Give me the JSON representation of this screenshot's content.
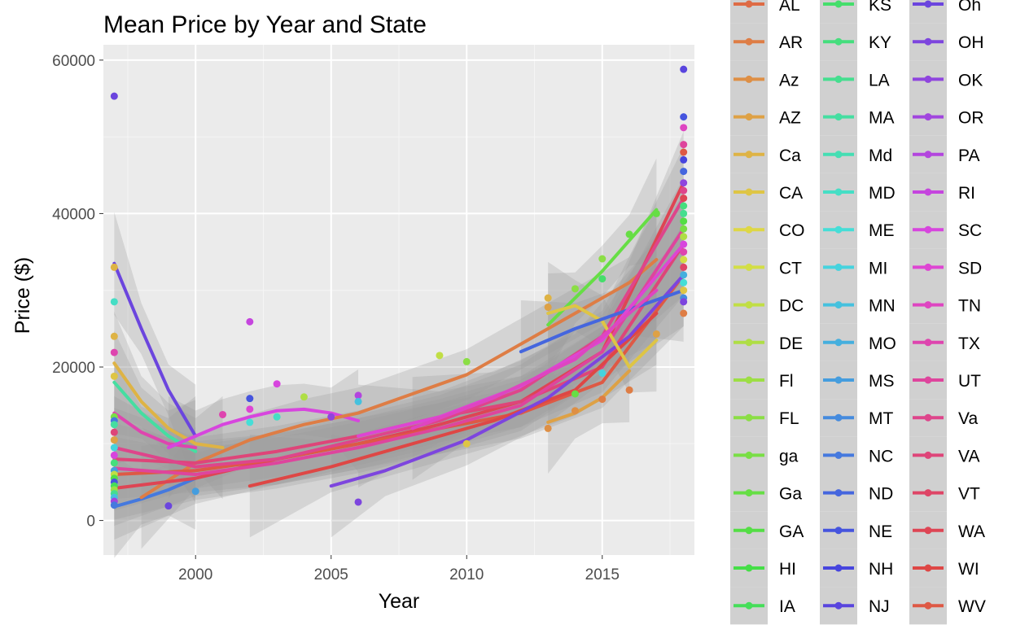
{
  "chart_data": {
    "type": "scatter",
    "title": "Mean Price by Year and State",
    "xlabel": "Year",
    "ylabel": "Price ($)",
    "xlim": [
      1996.6,
      2018.4
    ],
    "ylim": [
      -4500,
      62000
    ],
    "x_ticks": [
      2000,
      2005,
      2010,
      2015
    ],
    "y_ticks": [
      0,
      20000,
      40000,
      60000
    ],
    "grid": true,
    "legend_position": "right",
    "smooth": "loess with gray confidence bands",
    "legend_entries": [
      "AL",
      "AR",
      "Az",
      "AZ",
      "Ca",
      "CA",
      "CO",
      "CT",
      "DC",
      "DE",
      "Fl",
      "FL",
      "ga",
      "Ga",
      "GA",
      "HI",
      "IA",
      "KS",
      "KY",
      "LA",
      "MA",
      "Md",
      "MD",
      "ME",
      "MI",
      "MN",
      "MO",
      "MS",
      "MT",
      "NC",
      "ND",
      "NE",
      "NH",
      "NJ",
      "Oh",
      "OH",
      "OK",
      "OR",
      "PA",
      "RI",
      "SC",
      "SD",
      "TN",
      "TX",
      "UT",
      "Va",
      "VA",
      "VT",
      "WA",
      "WI",
      "WV"
    ],
    "points": [
      {
        "x": 1997,
        "y": 55300,
        "s": 34
      },
      {
        "x": 1997,
        "y": 33000,
        "s": 4
      },
      {
        "x": 1997,
        "y": 28500,
        "s": 22
      },
      {
        "x": 1997,
        "y": 24000,
        "s": 4
      },
      {
        "x": 1997,
        "y": 21900,
        "s": 43
      },
      {
        "x": 1997,
        "y": 18800,
        "s": 5
      },
      {
        "x": 1997,
        "y": 13500,
        "s": 12
      },
      {
        "x": 1997,
        "y": 13000,
        "s": 29
      },
      {
        "x": 1997,
        "y": 12500,
        "s": 20
      },
      {
        "x": 1997,
        "y": 11500,
        "s": 46
      },
      {
        "x": 1997,
        "y": 10500,
        "s": 3
      },
      {
        "x": 1997,
        "y": 9500,
        "s": 24
      },
      {
        "x": 1997,
        "y": 8500,
        "s": 40
      },
      {
        "x": 1997,
        "y": 7500,
        "s": 18
      },
      {
        "x": 1997,
        "y": 6500,
        "s": 27
      },
      {
        "x": 1997,
        "y": 6000,
        "s": 8
      },
      {
        "x": 1997,
        "y": 5500,
        "s": 14
      },
      {
        "x": 1997,
        "y": 5000,
        "s": 31
      },
      {
        "x": 1997,
        "y": 4500,
        "s": 16
      },
      {
        "x": 1997,
        "y": 4000,
        "s": 10
      },
      {
        "x": 1997,
        "y": 3500,
        "s": 19
      },
      {
        "x": 1997,
        "y": 3000,
        "s": 25
      },
      {
        "x": 1997,
        "y": 2500,
        "s": 37
      },
      {
        "x": 1997,
        "y": 2000,
        "s": 29
      },
      {
        "x": 1999,
        "y": 1900,
        "s": 34
      },
      {
        "x": 2000,
        "y": 3800,
        "s": 27
      },
      {
        "x": 2001,
        "y": 13800,
        "s": 43
      },
      {
        "x": 2002,
        "y": 25900,
        "s": 39
      },
      {
        "x": 2002,
        "y": 15900,
        "s": 31
      },
      {
        "x": 2002,
        "y": 14500,
        "s": 41
      },
      {
        "x": 2002,
        "y": 12800,
        "s": 23
      },
      {
        "x": 2003,
        "y": 17800,
        "s": 40
      },
      {
        "x": 2003,
        "y": 13500,
        "s": 22
      },
      {
        "x": 2004,
        "y": 16100,
        "s": 9
      },
      {
        "x": 2005,
        "y": 13500,
        "s": 36
      },
      {
        "x": 2006,
        "y": 16300,
        "s": 38
      },
      {
        "x": 2006,
        "y": 15500,
        "s": 25
      },
      {
        "x": 2006,
        "y": 2400,
        "s": 35
      },
      {
        "x": 2009,
        "y": 21500,
        "s": 8
      },
      {
        "x": 2010,
        "y": 20700,
        "s": 11
      },
      {
        "x": 2010,
        "y": 10000,
        "s": 5
      },
      {
        "x": 2013,
        "y": 29000,
        "s": 4
      },
      {
        "x": 2013,
        "y": 27800,
        "s": 3
      },
      {
        "x": 2013,
        "y": 12000,
        "s": 2
      },
      {
        "x": 2014,
        "y": 30200,
        "s": 11
      },
      {
        "x": 2014,
        "y": 14300,
        "s": 2
      },
      {
        "x": 2014,
        "y": 16500,
        "s": 13
      },
      {
        "x": 2015,
        "y": 34100,
        "s": 11
      },
      {
        "x": 2015,
        "y": 31500,
        "s": 17
      },
      {
        "x": 2015,
        "y": 19200,
        "s": 24
      },
      {
        "x": 2015,
        "y": 15800,
        "s": 1
      },
      {
        "x": 2016,
        "y": 37300,
        "s": 13
      },
      {
        "x": 2016,
        "y": 17000,
        "s": 1
      },
      {
        "x": 2017,
        "y": 40000,
        "s": 13
      },
      {
        "x": 2017,
        "y": 24300,
        "s": 3
      },
      {
        "x": 2018,
        "y": 58800,
        "s": 33
      },
      {
        "x": 2018,
        "y": 52600,
        "s": 31
      },
      {
        "x": 2018,
        "y": 51200,
        "s": 42
      },
      {
        "x": 2018,
        "y": 49000,
        "s": 44
      },
      {
        "x": 2018,
        "y": 48000,
        "s": 50
      },
      {
        "x": 2018,
        "y": 47000,
        "s": 32
      },
      {
        "x": 2018,
        "y": 45500,
        "s": 30
      },
      {
        "x": 2018,
        "y": 44000,
        "s": 36
      },
      {
        "x": 2018,
        "y": 43000,
        "s": 45
      },
      {
        "x": 2018,
        "y": 42000,
        "s": 48
      },
      {
        "x": 2018,
        "y": 41000,
        "s": 18
      },
      {
        "x": 2018,
        "y": 40000,
        "s": 19
      },
      {
        "x": 2018,
        "y": 39000,
        "s": 14
      },
      {
        "x": 2018,
        "y": 38000,
        "s": 12
      },
      {
        "x": 2018,
        "y": 37000,
        "s": 9
      },
      {
        "x": 2018,
        "y": 36000,
        "s": 40
      },
      {
        "x": 2018,
        "y": 35000,
        "s": 43
      },
      {
        "x": 2018,
        "y": 34000,
        "s": 7
      },
      {
        "x": 2018,
        "y": 33000,
        "s": 47
      },
      {
        "x": 2018,
        "y": 32000,
        "s": 26
      },
      {
        "x": 2018,
        "y": 31000,
        "s": 23
      },
      {
        "x": 2018,
        "y": 30000,
        "s": 5
      },
      {
        "x": 2018,
        "y": 29000,
        "s": 28
      },
      {
        "x": 2018,
        "y": 28500,
        "s": 35
      },
      {
        "x": 2018,
        "y": 27000,
        "s": 1
      }
    ],
    "series": [
      {
        "s": 34,
        "x": [
          1997,
          1998,
          1999,
          2000
        ],
        "y": [
          33500,
          25000,
          17000,
          11000
        ]
      },
      {
        "s": 4,
        "x": [
          1997,
          1998,
          1999,
          2000,
          2001
        ],
        "y": [
          20500,
          15500,
          12000,
          10000,
          9500
        ]
      },
      {
        "s": 20,
        "x": [
          1997,
          1998,
          1999,
          2000
        ],
        "y": [
          18000,
          14000,
          11000,
          9000
        ]
      },
      {
        "s": 43,
        "x": [
          1997,
          1998,
          1999,
          2000
        ],
        "y": [
          14000,
          11500,
          10000,
          9500
        ]
      },
      {
        "s": 40,
        "x": [
          1999,
          2000,
          2001,
          2002,
          2003,
          2004,
          2005,
          2006
        ],
        "y": [
          9500,
          11000,
          12500,
          13500,
          14300,
          14500,
          14000,
          13000
        ]
      },
      {
        "s": 29,
        "x": [
          1997,
          1998,
          1999,
          2000
        ],
        "y": [
          1800,
          2800,
          4000,
          5500
        ]
      },
      {
        "s": 1,
        "x": [
          1998,
          2000,
          2002,
          2004,
          2006,
          2008,
          2010,
          2012,
          2014,
          2016,
          2017
        ],
        "y": [
          3000,
          7500,
          10500,
          12500,
          14000,
          16500,
          19000,
          23000,
          27000,
          31000,
          34000
        ]
      },
      {
        "s": 48,
        "x": [
          1997,
          2000,
          2003,
          2006,
          2009,
          2012,
          2015,
          2018
        ],
        "y": [
          4200,
          5500,
          8000,
          10000,
          12500,
          15500,
          22000,
          44000
        ]
      },
      {
        "s": 50,
        "x": [
          1997,
          2000,
          2003,
          2006,
          2009,
          2012,
          2015,
          2018
        ],
        "y": [
          6000,
          6500,
          8000,
          10000,
          12000,
          14000,
          18000,
          32000
        ]
      },
      {
        "s": 46,
        "x": [
          1997,
          2000,
          2003,
          2006,
          2009,
          2012,
          2015,
          2018
        ],
        "y": [
          8000,
          7500,
          9000,
          11000,
          13500,
          15500,
          20000,
          36000
        ]
      },
      {
        "s": 45,
        "x": [
          1997,
          2000,
          2003,
          2006,
          2009,
          2012,
          2015,
          2018
        ],
        "y": [
          9500,
          7000,
          8000,
          10500,
          13000,
          17000,
          24000,
          42000
        ]
      },
      {
        "s": 44,
        "x": [
          1997,
          2000,
          2003,
          2006,
          2009,
          2012,
          2015,
          2018
        ],
        "y": [
          6800,
          6000,
          7500,
          9500,
          12000,
          15000,
          22000,
          38000
        ]
      },
      {
        "s": 49,
        "x": [
          2002,
          2005,
          2008,
          2011,
          2014,
          2017
        ],
        "y": [
          4500,
          7000,
          10000,
          13000,
          17000,
          27000
        ]
      },
      {
        "s": 35,
        "x": [
          2005,
          2007,
          2010,
          2013,
          2016,
          2018
        ],
        "y": [
          4500,
          6500,
          10500,
          16000,
          24000,
          32000
        ]
      },
      {
        "s": 13,
        "x": [
          2013,
          2014,
          2015,
          2016,
          2017
        ],
        "y": [
          25500,
          29000,
          32500,
          36500,
          40500
        ]
      },
      {
        "s": 3,
        "x": [
          2013,
          2014,
          2015,
          2016
        ],
        "y": [
          12800,
          14000,
          16000,
          19500
        ]
      },
      {
        "s": 5,
        "x": [
          2013,
          2014,
          2015,
          2016,
          2017
        ],
        "y": [
          27000,
          28000,
          26000,
          20000,
          23500
        ]
      },
      {
        "s": 30,
        "x": [
          2012,
          2014,
          2016,
          2018
        ],
        "y": [
          22000,
          25000,
          27500,
          30000
        ]
      },
      {
        "s": 41,
        "x": [
          2006,
          2009,
          2012,
          2015,
          2018
        ],
        "y": [
          11000,
          13500,
          17500,
          23500,
          36000
        ]
      },
      {
        "s": 42,
        "x": [
          2008,
          2011,
          2014,
          2017
        ],
        "y": [
          12000,
          16000,
          21000,
          30000
        ]
      }
    ]
  }
}
